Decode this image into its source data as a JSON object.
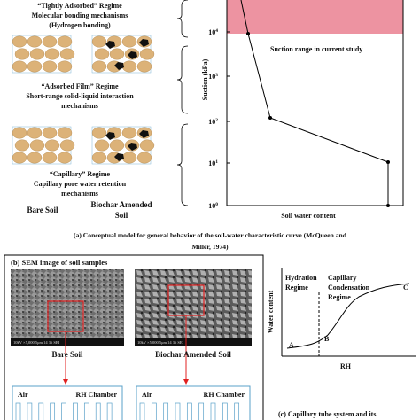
{
  "panel_a": {
    "regimes": [
      {
        "title": "“Tightly Adsorbed” Regime",
        "lines": [
          "Molecular bonding mechanisms",
          "(Hydrogen bonding)"
        ]
      },
      {
        "title": "“Adsorbed Film” Regime",
        "lines": [
          "Short-range solid-liquid interaction",
          "mechanisms"
        ]
      },
      {
        "title": "“Capillary” Regime",
        "lines": [
          "Capillary pore water retention",
          "mechanisms"
        ]
      }
    ],
    "soil_labels": {
      "bare": "Bare Soil",
      "biochar": [
        "Biochar Amended",
        "Soil"
      ]
    },
    "plot": {
      "y_label": "Suction (kPa)",
      "x_label": "Soil water content",
      "band_label": "Suction range in current study",
      "y_ticks": [
        {
          "base": "10",
          "exp": "4"
        },
        {
          "base": "10",
          "exp": "3"
        },
        {
          "base": "10",
          "exp": "2"
        },
        {
          "base": "10",
          "exp": "1"
        },
        {
          "base": "10",
          "exp": "0"
        }
      ]
    },
    "caption": [
      "(a) Conceptual model for general behavior of the soil-water characteristic curve (McQueen and",
      "Miller, 1974)"
    ]
  },
  "panel_b": {
    "title": "(b) SEM image of soil samples",
    "images": [
      {
        "label": "Bare Soil",
        "scale_bar": "10kV  ×5,000  5μm  14 36 SEI",
        "chamber": [
          "Air",
          "RH Chamber"
        ]
      },
      {
        "label": "Biochar Amended Soil",
        "scale_bar": "10kV  ×5,000  5μm  14 36 SEI",
        "chamber": [
          "Air",
          "RH Chamber"
        ]
      }
    ]
  },
  "panel_c": {
    "y_label": "Water content",
    "x_label": "RH",
    "regime_1": [
      "Hydration",
      "Regime"
    ],
    "regime_2": [
      "Capillary",
      "Condensation",
      "Regime"
    ],
    "points": [
      "A",
      "B",
      "C"
    ],
    "caption": "(c) Capillary tube system and its"
  }
}
